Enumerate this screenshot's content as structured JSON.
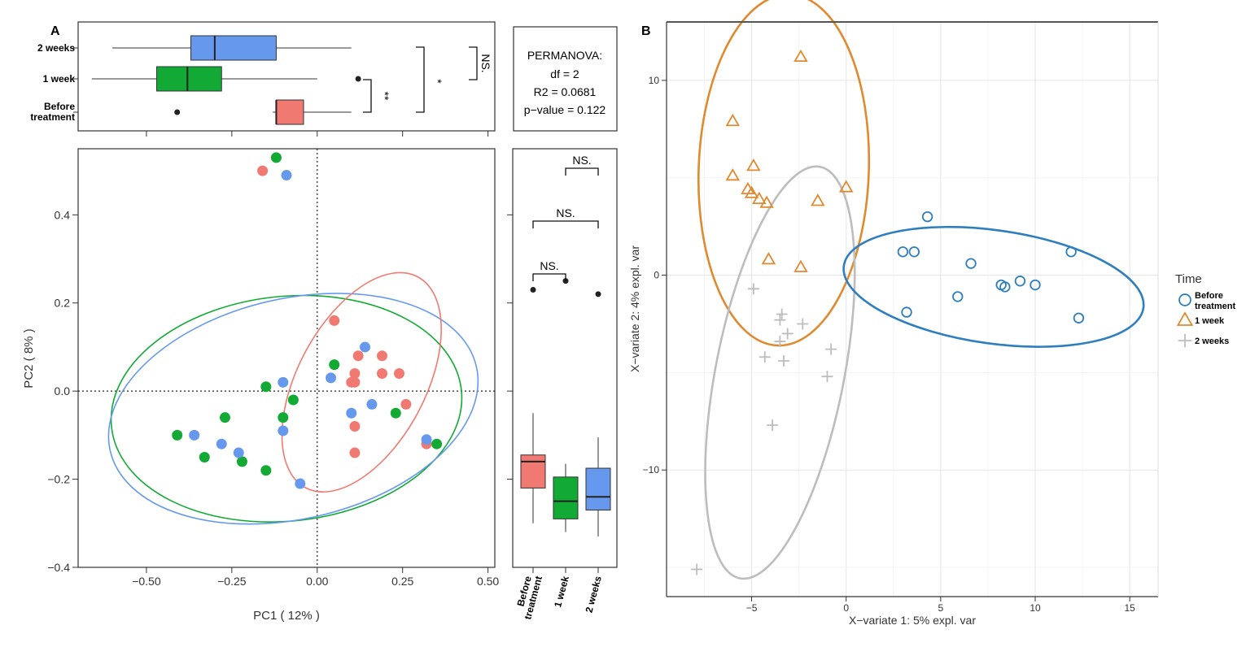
{
  "colors": {
    "before": "#F07A72",
    "week1": "#12AA34",
    "week2": "#6699EE",
    "b_before": "#2F7FBF",
    "b_week1": "#E08A30",
    "b_week2": "#BDBDBD"
  },
  "panel_a_label": "A",
  "panel_b_label": "B",
  "permanova": {
    "line1": "PERMANOVA:",
    "line2": "df = 2",
    "line3": "R2 = 0.0681",
    "line4": "p−value = 0.122"
  },
  "chart_data": [
    {
      "type": "box",
      "id": "top-boxplot",
      "orientation": "horizontal",
      "categories": [
        "2 weeks",
        "1 week",
        "Before treatment"
      ],
      "category_lines": [
        [
          "2 weeks"
        ],
        [
          "1 week"
        ],
        [
          "Before",
          "treatment"
        ]
      ],
      "boxes": [
        {
          "group": "2 weeks",
          "min": -0.6,
          "q1": -0.37,
          "median": -0.3,
          "q3": -0.12,
          "max": 0.1,
          "outliers": []
        },
        {
          "group": "1 week",
          "min": -0.66,
          "q1": -0.47,
          "median": -0.38,
          "q3": -0.28,
          "max": 0.0,
          "outliers": [
            0.12
          ]
        },
        {
          "group": "Before treatment",
          "min": -0.13,
          "q1": -0.12,
          "median": -0.12,
          "q3": -0.04,
          "max": 0.1,
          "outliers": [
            -0.41
          ]
        }
      ],
      "xlim": [
        -0.7,
        0.52
      ],
      "significance": [
        {
          "pair": [
            "Before treatment",
            "1 week"
          ],
          "label": "**"
        },
        {
          "pair": [
            "Before treatment",
            "2 weeks"
          ],
          "label": "*"
        },
        {
          "pair": [
            "1 week",
            "2 weeks"
          ],
          "label": "NS."
        }
      ]
    },
    {
      "type": "scatter",
      "id": "pcoa",
      "xlabel": "PC1 ( 12% )",
      "ylabel": "PC2 ( 8% )",
      "xlim": [
        -0.7,
        0.52
      ],
      "ylim": [
        -0.4,
        0.55
      ],
      "xticks": [
        -0.5,
        -0.25,
        0.0,
        0.25,
        0.5
      ],
      "xtick_labels": [
        "−0.50",
        "−0.25",
        "0.00",
        "0.25",
        "0.50"
      ],
      "yticks": [
        -0.4,
        -0.2,
        0.0,
        0.2,
        0.4
      ],
      "ytick_labels": [
        "−0.4",
        "−0.2",
        "0.0",
        "0.2",
        "0.4"
      ],
      "series": [
        {
          "key": "before",
          "points": [
            [
              -0.16,
              0.5
            ],
            [
              0.05,
              0.16
            ],
            [
              0.12,
              0.08
            ],
            [
              0.19,
              0.08
            ],
            [
              0.11,
              0.04
            ],
            [
              0.19,
              0.04
            ],
            [
              0.24,
              0.04
            ],
            [
              0.11,
              0.02
            ],
            [
              0.1,
              0.02
            ],
            [
              0.26,
              -0.03
            ],
            [
              0.11,
              -0.08
            ],
            [
              0.11,
              -0.14
            ],
            [
              0.32,
              -0.12
            ]
          ]
        },
        {
          "key": "week1",
          "points": [
            [
              -0.12,
              0.53
            ],
            [
              -0.15,
              0.01
            ],
            [
              0.05,
              0.06
            ],
            [
              -0.07,
              -0.02
            ],
            [
              -0.1,
              -0.06
            ],
            [
              -0.27,
              -0.06
            ],
            [
              -0.41,
              -0.1
            ],
            [
              -0.33,
              -0.15
            ],
            [
              -0.22,
              -0.16
            ],
            [
              -0.15,
              -0.18
            ],
            [
              0.23,
              -0.05
            ],
            [
              0.35,
              -0.12
            ]
          ]
        },
        {
          "key": "week2",
          "points": [
            [
              -0.09,
              0.49
            ],
            [
              -0.1,
              0.02
            ],
            [
              0.04,
              0.03
            ],
            [
              0.14,
              0.1
            ],
            [
              0.16,
              -0.03
            ],
            [
              0.1,
              -0.05
            ],
            [
              -0.1,
              -0.09
            ],
            [
              -0.36,
              -0.1
            ],
            [
              -0.28,
              -0.12
            ],
            [
              -0.23,
              -0.14
            ],
            [
              -0.05,
              -0.21
            ],
            [
              0.32,
              -0.11
            ]
          ]
        }
      ],
      "ellipses": [
        {
          "key": "week1",
          "cx": -0.09,
          "cy": -0.04,
          "rx": 0.515,
          "ry": 0.255,
          "rot": -6
        },
        {
          "key": "week2",
          "cx": -0.07,
          "cy": -0.04,
          "rx": 0.55,
          "ry": 0.25,
          "rot": -13
        },
        {
          "key": "before",
          "cx": 0.13,
          "cy": 0.02,
          "rx": 0.35,
          "ry": 0.145,
          "rot": -62
        }
      ]
    },
    {
      "type": "box",
      "id": "right-boxplot",
      "orientation": "vertical",
      "categories": [
        "Before treatment",
        "1 week",
        "2 weeks"
      ],
      "category_lines": [
        [
          "Before",
          "treatment"
        ],
        [
          "1 week"
        ],
        [
          "2 weeks"
        ]
      ],
      "boxes": [
        {
          "group": "Before treatment",
          "min": -0.3,
          "q1": -0.22,
          "median": -0.16,
          "q3": -0.145,
          "max": -0.05,
          "outliers": [
            0.23
          ]
        },
        {
          "group": "1 week",
          "min": -0.32,
          "q1": -0.29,
          "median": -0.25,
          "q3": -0.195,
          "max": -0.165,
          "outliers": [
            0.25
          ]
        },
        {
          "group": "2 weeks",
          "min": -0.33,
          "q1": -0.27,
          "median": -0.24,
          "q3": -0.175,
          "max": -0.105,
          "outliers": [
            0.22
          ]
        }
      ],
      "ylim": [
        -0.4,
        0.55
      ],
      "significance": [
        {
          "pair": [
            "1 week",
            "2 weeks"
          ],
          "label": "NS."
        },
        {
          "pair": [
            "Before treatment",
            "2 weeks"
          ],
          "label": "NS."
        },
        {
          "pair": [
            "Before treatment",
            "1 week"
          ],
          "label": "NS."
        }
      ]
    },
    {
      "type": "scatter",
      "id": "plsda",
      "xlabel": "X−variate 1: 5% expl. var",
      "ylabel": "X−variate 2: 4% expl. var",
      "xlim": [
        -9.5,
        16.5
      ],
      "ylim": [
        -16.5,
        13
      ],
      "xticks": [
        -5,
        0,
        5,
        10,
        15
      ],
      "xtick_labels": [
        "−5",
        "0",
        "5",
        "10",
        "15"
      ],
      "yticks": [
        -10,
        0,
        10
      ],
      "ytick_labels": [
        "−10",
        "0",
        "10"
      ],
      "grid": true,
      "legend": {
        "title": "Time",
        "position": "right",
        "entries": [
          {
            "key": "b_before",
            "shape": "circle",
            "lines": [
              "Before",
              "treatment"
            ]
          },
          {
            "key": "b_week1",
            "shape": "triangle",
            "lines": [
              "1 week"
            ]
          },
          {
            "key": "b_week2",
            "shape": "plus",
            "lines": [
              "2 weeks"
            ]
          }
        ]
      },
      "series": [
        {
          "key": "b_before",
          "shape": "circle",
          "points": [
            [
              4.3,
              3.0
            ],
            [
              3.0,
              1.2
            ],
            [
              3.6,
              1.2
            ],
            [
              11.9,
              1.2
            ],
            [
              6.6,
              0.6
            ],
            [
              8.2,
              -0.5
            ],
            [
              8.4,
              -0.6
            ],
            [
              9.2,
              -0.3
            ],
            [
              10.0,
              -0.5
            ],
            [
              5.9,
              -1.1
            ],
            [
              3.2,
              -1.9
            ],
            [
              12.3,
              -2.2
            ]
          ]
        },
        {
          "key": "b_week1",
          "shape": "triangle",
          "points": [
            [
              -2.4,
              11.2
            ],
            [
              -6.0,
              7.9
            ],
            [
              -6.0,
              5.1
            ],
            [
              -4.9,
              5.6
            ],
            [
              -5.2,
              4.4
            ],
            [
              -5.0,
              4.2
            ],
            [
              -4.6,
              3.9
            ],
            [
              -4.2,
              3.7
            ],
            [
              -1.5,
              3.8
            ],
            [
              0.0,
              4.5
            ],
            [
              -4.1,
              0.8
            ],
            [
              -2.4,
              0.4
            ]
          ]
        },
        {
          "key": "b_week2",
          "shape": "plus",
          "points": [
            [
              -4.9,
              -0.7
            ],
            [
              -3.4,
              -2.0
            ],
            [
              -3.5,
              -2.3
            ],
            [
              -2.3,
              -2.5
            ],
            [
              -3.1,
              -3.0
            ],
            [
              -3.5,
              -3.4
            ],
            [
              -4.3,
              -4.2
            ],
            [
              -3.3,
              -4.4
            ],
            [
              -0.8,
              -3.8
            ],
            [
              -1.0,
              -5.2
            ],
            [
              -3.9,
              -7.7
            ],
            [
              -7.9,
              -15.1
            ]
          ]
        }
      ],
      "ellipses": [
        {
          "key": "b_week1",
          "cx": -3.3,
          "cy": 5.4,
          "rx": 9.3,
          "ry": 4.5,
          "rot": -88
        },
        {
          "key": "b_week2",
          "cx": -3.5,
          "cy": -5.0,
          "rx": 11.1,
          "ry": 3.4,
          "rot": -79
        },
        {
          "key": "b_before",
          "cx": 7.8,
          "cy": -0.6,
          "rx": 8.0,
          "ry": 3.0,
          "rot": 8
        }
      ]
    }
  ]
}
